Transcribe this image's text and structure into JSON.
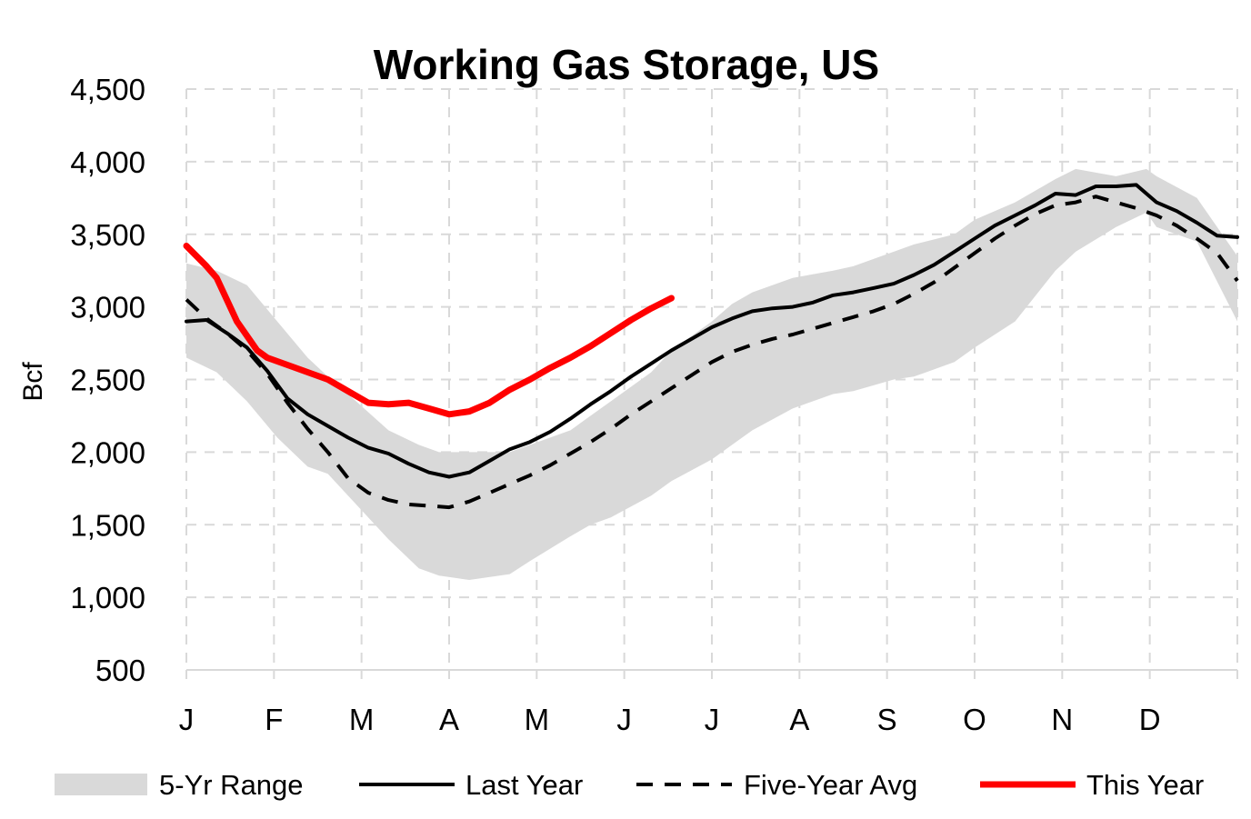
{
  "chart_data": {
    "type": "line",
    "title": "Working Gas Storage, US",
    "xlabel": "",
    "ylabel": "Bcf",
    "x_ticks": [
      "J",
      "F",
      "M",
      "A",
      "M",
      "J",
      "J",
      "A",
      "S",
      "O",
      "N",
      "D"
    ],
    "xlim": [
      0,
      52
    ],
    "ylim": [
      500,
      4500
    ],
    "y_ticks": [
      500,
      1000,
      1500,
      2000,
      2500,
      3000,
      3500,
      4000,
      4500
    ],
    "y_tick_labels": [
      "500",
      "1,000",
      "1,500",
      "2,000",
      "2,500",
      "3,000",
      "3,500",
      "4,000",
      "4,500"
    ],
    "grid": true,
    "legend_position": "bottom",
    "range": {
      "name": "5-Yr Range",
      "color": "#d9d9d9",
      "x": [
        0,
        1.5,
        3,
        4.5,
        6,
        7,
        8,
        10,
        11.5,
        12.5,
        14,
        16,
        17,
        19,
        20,
        21,
        23,
        24,
        26,
        27,
        28,
        30,
        32,
        33,
        35,
        36,
        38,
        39,
        41,
        43,
        44,
        46,
        47.5,
        48,
        50,
        52
      ],
      "low": [
        2650,
        2550,
        2350,
        2100,
        1900,
        1850,
        1700,
        1400,
        1200,
        1150,
        1120,
        1160,
        1250,
        1420,
        1500,
        1550,
        1700,
        1800,
        1950,
        2050,
        2150,
        2300,
        2400,
        2420,
        2500,
        2520,
        2620,
        2720,
        2900,
        3250,
        3380,
        3550,
        3650,
        3550,
        3450,
        2900
      ],
      "high": [
        3300,
        3250,
        3150,
        2900,
        2650,
        2520,
        2400,
        2150,
        2050,
        2000,
        2000,
        2000,
        2050,
        2150,
        2250,
        2350,
        2550,
        2700,
        2900,
        3020,
        3100,
        3200,
        3250,
        3280,
        3380,
        3430,
        3500,
        3600,
        3720,
        3880,
        3950,
        3900,
        3950,
        3900,
        3750,
        3350
      ]
    },
    "series": [
      {
        "name": "Last Year",
        "color": "#000000",
        "dash": "solid",
        "x": [
          0,
          1,
          2,
          3,
          4,
          5,
          6,
          7,
          8,
          9,
          10,
          11,
          12,
          13,
          14,
          15,
          16,
          17,
          18,
          19,
          20,
          21,
          22,
          23,
          24,
          25,
          26,
          27,
          28,
          29,
          30,
          31,
          32,
          33,
          34,
          35,
          36,
          37,
          38,
          39,
          40,
          41,
          42,
          43,
          44,
          45,
          46,
          47,
          48,
          49,
          50,
          51,
          52
        ],
        "y": [
          2900,
          2910,
          2820,
          2720,
          2560,
          2370,
          2260,
          2180,
          2100,
          2030,
          1990,
          1920,
          1860,
          1830,
          1860,
          1940,
          2020,
          2070,
          2140,
          2230,
          2330,
          2420,
          2520,
          2610,
          2700,
          2780,
          2860,
          2920,
          2970,
          2990,
          3000,
          3030,
          3080,
          3100,
          3130,
          3160,
          3220,
          3290,
          3380,
          3470,
          3560,
          3630,
          3700,
          3780,
          3770,
          3830,
          3830,
          3840,
          3720,
          3660,
          3580,
          3490,
          3480
        ]
      },
      {
        "name": "Five-Year Avg",
        "color": "#000000",
        "dash": "dashed",
        "x": [
          0,
          1,
          2,
          3,
          4,
          5,
          6,
          7,
          8,
          9,
          10,
          11,
          12,
          13,
          14,
          15,
          16,
          17,
          18,
          19,
          20,
          21,
          22,
          23,
          24,
          25,
          26,
          27,
          28,
          29,
          30,
          31,
          32,
          33,
          34,
          35,
          36,
          37,
          38,
          39,
          40,
          41,
          42,
          43,
          44,
          45,
          46,
          47,
          48,
          49,
          50,
          51,
          52
        ],
        "y": [
          3050,
          2920,
          2820,
          2700,
          2540,
          2340,
          2160,
          2000,
          1820,
          1720,
          1670,
          1640,
          1630,
          1620,
          1660,
          1720,
          1780,
          1840,
          1910,
          1990,
          2070,
          2160,
          2260,
          2350,
          2440,
          2530,
          2620,
          2690,
          2740,
          2780,
          2810,
          2850,
          2890,
          2930,
          2970,
          3020,
          3090,
          3170,
          3270,
          3370,
          3470,
          3560,
          3640,
          3700,
          3720,
          3760,
          3720,
          3680,
          3630,
          3560,
          3470,
          3370,
          3180
        ]
      },
      {
        "name": "This Year",
        "color": "#ff0000",
        "dash": "solid",
        "x": [
          0,
          1,
          1.5,
          2.5,
          3.5,
          4,
          5,
          6,
          7,
          8,
          9,
          10,
          11,
          12,
          13,
          14,
          15,
          16,
          17,
          18,
          19,
          20,
          21,
          22,
          23,
          24
        ],
        "y": [
          3420,
          3280,
          3200,
          2900,
          2700,
          2650,
          2600,
          2550,
          2500,
          2420,
          2340,
          2330,
          2340,
          2300,
          2260,
          2280,
          2340,
          2430,
          2500,
          2580,
          2650,
          2730,
          2820,
          2910,
          2990,
          3060
        ]
      }
    ]
  }
}
